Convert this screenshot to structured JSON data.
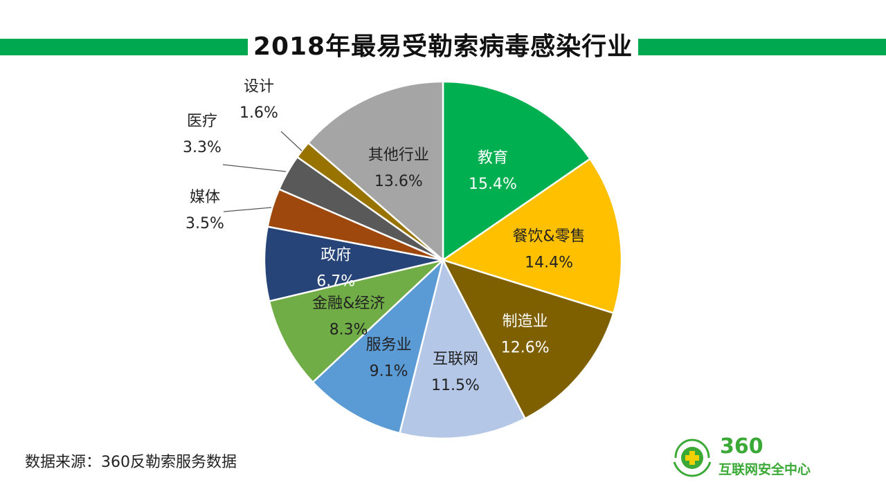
{
  "title": "2018年最易受勒索病毒感染行业",
  "source": "数据来源：360反勒索服务数据",
  "logo": {
    "number": "360",
    "text": "互联网安全中心",
    "icon": "360-cross-shield-icon"
  },
  "colors": {
    "accent_bar": "#00a94f",
    "logo_green": "#3aa935"
  },
  "chart_data": {
    "type": "pie",
    "title": "2018年最易受勒索病毒感染行业",
    "start": "12-o'clock",
    "direction": "clockwise",
    "slices": [
      {
        "label": "教育",
        "value": 15.4,
        "display": "15.4%",
        "color": "#00b050",
        "text_color": "#ffffff"
      },
      {
        "label": "餐饮&零售",
        "value": 14.4,
        "display": "14.4%",
        "color": "#ffc000",
        "text_color": "#222222"
      },
      {
        "label": "制造业",
        "value": 12.6,
        "display": "12.6%",
        "color": "#7f6000",
        "text_color": "#ffffff"
      },
      {
        "label": "互联网",
        "value": 11.5,
        "display": "11.5%",
        "color": "#b4c7e7",
        "text_color": "#222222"
      },
      {
        "label": "服务业",
        "value": 9.1,
        "display": "9.1%",
        "color": "#5b9bd5",
        "text_color": "#222222"
      },
      {
        "label": "金融&经济",
        "value": 8.3,
        "display": "8.3%",
        "color": "#70ad47",
        "text_color": "#222222"
      },
      {
        "label": "政府",
        "value": 6.7,
        "display": "6.7%",
        "color": "#264478",
        "text_color": "#ffffff"
      },
      {
        "label": "媒体",
        "value": 3.5,
        "display": "3.5%",
        "color": "#9e480e",
        "text_color": "#222222"
      },
      {
        "label": "医疗",
        "value": 3.3,
        "display": "3.3%",
        "color": "#595959",
        "text_color": "#222222"
      },
      {
        "label": "设计",
        "value": 1.6,
        "display": "1.6%",
        "color": "#997300",
        "text_color": "#222222"
      },
      {
        "label": "其他行业",
        "value": 13.6,
        "display": "13.6%",
        "color": "#a5a5a5",
        "text_color": "#222222"
      }
    ]
  }
}
